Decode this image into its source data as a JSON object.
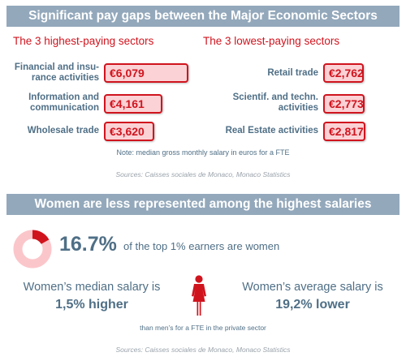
{
  "section1": {
    "title": "Significant pay gaps between the Major Economic Sectors",
    "highest_title": "The 3 highest-paying sectors",
    "lowest_title": "The 3 lowest-paying sectors",
    "highest": [
      {
        "sector": "Financial and insu-rance activities",
        "value": "€6,079"
      },
      {
        "sector": "Information and communication",
        "value": "€4,161"
      },
      {
        "sector": "Wholesale trade",
        "value": "€3,620"
      }
    ],
    "lowest": [
      {
        "sector": "Retail trade",
        "value": "€2,762"
      },
      {
        "sector": "Scientif. and techn. activities",
        "value": "€2,773"
      },
      {
        "sector": "Real Estate activities",
        "value": "€2,817"
      }
    ],
    "note": "Note: median gross monthly salary in euros for a FTE",
    "source": "Sources: Caisses sociales de Monaco, Monaco Statistics"
  },
  "section2": {
    "title": "Women are less represented among the highest salaries",
    "women_share": 16.7,
    "women_share_label": "16.7%",
    "women_share_text": "of the top 1% earners are women",
    "median_label": "Women’s median salary is",
    "median_value": "1,5% higher",
    "average_label": "Women’s average salary is",
    "average_value": "19,2% lower",
    "footnote": "than men’s for a FTE in the private sector",
    "source": "Sources: Caisses sociales de Monaco, Monaco Statistics"
  },
  "colors": {
    "accent_red": "#d0141e",
    "pale_red": "#fbd2d5",
    "banner": "#93a8bb",
    "text_blue": "#4f6f86"
  },
  "icons": [
    "donut-chart-icon",
    "woman-icon"
  ]
}
